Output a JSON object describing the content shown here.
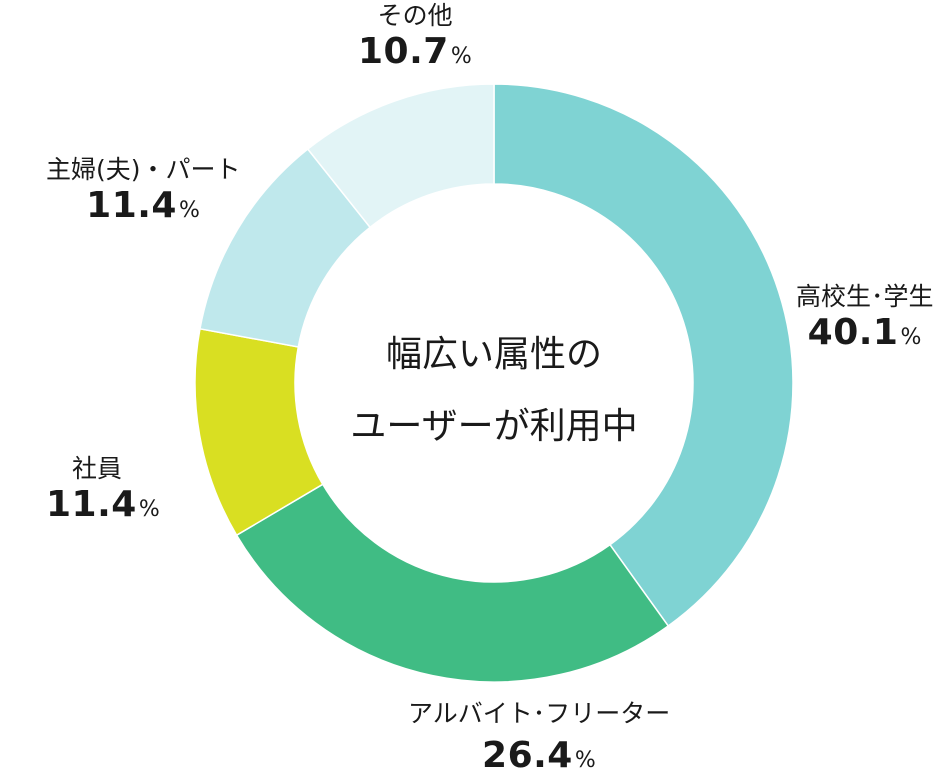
{
  "chart_data": {
    "type": "pie",
    "donut": true,
    "center_text": [
      "幅広い属性の",
      "ユーザーが利用中"
    ],
    "unit": "%",
    "slices": [
      {
        "label": "高校生･学生",
        "value": 40.1,
        "color": "#7fd3d3"
      },
      {
        "label": "アルバイト･フリーター",
        "value": 26.4,
        "color": "#40bc84"
      },
      {
        "label": "社員",
        "value": 11.4,
        "color": "#d9df22"
      },
      {
        "label": "主婦(夫)・パート",
        "value": 11.4,
        "color": "#bfe8ec"
      },
      {
        "label": "その他",
        "value": 10.7,
        "color": "#e2f4f6"
      }
    ]
  }
}
